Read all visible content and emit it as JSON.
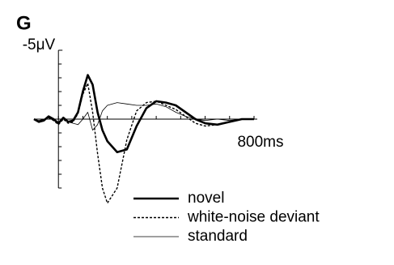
{
  "chart_data": {
    "type": "line",
    "panel_label": "G",
    "x": [
      -100,
      -80,
      -60,
      -40,
      -20,
      0,
      20,
      40,
      60,
      80,
      100,
      120,
      140,
      160,
      180,
      200,
      240,
      280,
      320,
      360,
      400,
      440,
      480,
      520,
      560,
      600,
      650,
      700,
      750,
      800
    ],
    "series": [
      {
        "name": "novel",
        "color": "#000000",
        "style": "thick",
        "values": [
          0,
          0.2,
          0.1,
          -0.2,
          0,
          0.3,
          -0.1,
          0.2,
          0.1,
          -0.5,
          -2,
          -3.2,
          -2.5,
          -0.5,
          0.8,
          1.6,
          2.4,
          2.2,
          0.5,
          -0.8,
          -1.3,
          -1.2,
          -1,
          -0.5,
          0,
          0.3,
          0.4,
          0.2,
          0,
          0
        ]
      },
      {
        "name": "white-noise deviant",
        "color": "#000000",
        "style": "dashed",
        "values": [
          0,
          0.2,
          0,
          -0.1,
          0.1,
          0.4,
          0,
          0.3,
          0.2,
          -0.4,
          -1.8,
          -2.6,
          -0.5,
          2.5,
          5,
          6.1,
          5,
          1.5,
          -0.6,
          -1.2,
          -1.3,
          -1,
          -0.7,
          -0.2,
          0.3,
          0.5,
          0.4,
          0.2,
          0,
          0
        ]
      },
      {
        "name": "standard",
        "color": "#000000",
        "style": "thin",
        "values": [
          0,
          0.1,
          0,
          -0.1,
          0.1,
          0.2,
          0,
          0.2,
          0.3,
          0.4,
          0,
          -0.5,
          0.8,
          0.4,
          -0.6,
          -1,
          -1.2,
          -1.1,
          -1,
          -1,
          -1.1,
          -0.9,
          -0.5,
          -0.2,
          0,
          0.1,
          0,
          0.1,
          0,
          0
        ]
      }
    ],
    "xlim": [
      -100,
      800
    ],
    "ylim": [
      -5,
      5
    ],
    "y_inverted": true,
    "xticks": [
      {
        "value": 800,
        "label": "800ms"
      }
    ],
    "xminor": [
      0,
      100,
      200,
      300,
      400,
      500,
      600,
      700
    ],
    "yticks": [
      {
        "value": -5,
        "label": "-5μV"
      }
    ],
    "yminor": [
      -4,
      -3,
      -2,
      -1,
      0,
      1,
      2,
      3,
      4,
      5
    ]
  }
}
